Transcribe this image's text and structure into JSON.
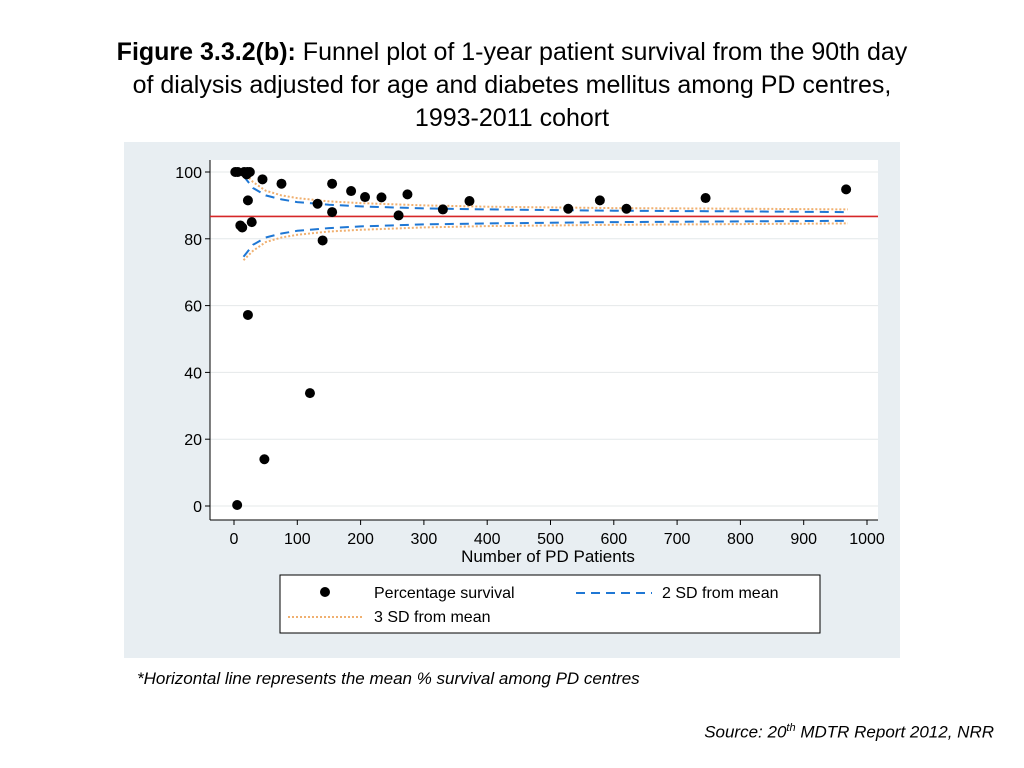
{
  "figure": {
    "label": "Figure 3.3.2(b):",
    "title_l1": " Funnel plot of 1-year patient survival from the 90th day",
    "title_l2": "of dialysis adjusted for age and diabetes mellitus among PD centres,",
    "title_l3": "1993-2011 cohort"
  },
  "footnote": "*Horizontal line represents the mean % survival among PD centres",
  "source": {
    "prefix": "Source: 20",
    "sup": "th",
    "suffix": " MDTR Report 2012, NRR"
  },
  "colors": {
    "panel_bg": "#e8eef2",
    "plot_bg": "#ffffff",
    "points": "#000000",
    "mean_line": "#d62728",
    "sd2": "#1f77d4",
    "sd3": "#f0b070"
  },
  "chart_data": {
    "type": "scatter",
    "xlabel": "Number of PD Patients",
    "ylabel": "",
    "xlim": [
      0,
      1000
    ],
    "ylim": [
      0,
      100
    ],
    "xticks": [
      0,
      100,
      200,
      300,
      400,
      500,
      600,
      700,
      800,
      900,
      1000
    ],
    "yticks": [
      0,
      20,
      40,
      60,
      80,
      100
    ],
    "grid": true,
    "mean": 86.7,
    "points": [
      [
        2,
        100
      ],
      [
        6,
        100
      ],
      [
        16,
        100
      ],
      [
        21,
        100
      ],
      [
        25,
        100
      ],
      [
        20,
        99.3
      ],
      [
        10,
        84
      ],
      [
        13,
        83.4
      ],
      [
        22,
        91.5
      ],
      [
        28,
        85
      ],
      [
        22,
        57.2
      ],
      [
        5,
        0.3
      ],
      [
        45,
        97.8
      ],
      [
        48,
        14
      ],
      [
        75,
        96.5
      ],
      [
        120,
        33.8
      ],
      [
        132,
        90.5
      ],
      [
        140,
        79.5
      ],
      [
        155,
        88
      ],
      [
        155,
        96.5
      ],
      [
        185,
        94.3
      ],
      [
        207,
        92.5
      ],
      [
        233,
        92.4
      ],
      [
        260,
        87
      ],
      [
        274,
        93.3
      ],
      [
        330,
        88.8
      ],
      [
        372,
        91.3
      ],
      [
        528,
        89
      ],
      [
        578,
        91.5
      ],
      [
        620,
        89
      ],
      [
        745,
        92.2
      ],
      [
        967,
        94.8
      ]
    ],
    "series": [
      {
        "name": "Percentage survival"
      },
      {
        "name": "2 SD from mean",
        "sd": 2
      },
      {
        "name": "3 SD from mean",
        "sd": 3
      }
    ],
    "limits": {
      "x_start": 15,
      "x_end": 970,
      "sd2": {
        "upper": [
          [
            15,
            98.8
          ],
          [
            30,
            95.2
          ],
          [
            50,
            93.0
          ],
          [
            75,
            91.8
          ],
          [
            100,
            91.0
          ],
          [
            150,
            90.2
          ],
          [
            200,
            89.7
          ],
          [
            300,
            89.1
          ],
          [
            400,
            88.8
          ],
          [
            600,
            88.4
          ],
          [
            800,
            88.2
          ],
          [
            970,
            88.0
          ]
        ],
        "lower": [
          [
            15,
            74.6
          ],
          [
            30,
            78.2
          ],
          [
            50,
            80.4
          ],
          [
            75,
            81.6
          ],
          [
            100,
            82.4
          ],
          [
            150,
            83.2
          ],
          [
            200,
            83.7
          ],
          [
            300,
            84.3
          ],
          [
            400,
            84.6
          ],
          [
            600,
            85.0
          ],
          [
            800,
            85.2
          ],
          [
            970,
            85.4
          ]
        ]
      },
      "sd3": {
        "upper": [
          [
            15,
            100
          ],
          [
            30,
            97.0
          ],
          [
            50,
            94.4
          ],
          [
            75,
            93.0
          ],
          [
            100,
            92.2
          ],
          [
            150,
            91.2
          ],
          [
            200,
            90.7
          ],
          [
            300,
            90.0
          ],
          [
            400,
            89.6
          ],
          [
            600,
            89.2
          ],
          [
            800,
            89.0
          ],
          [
            970,
            88.8
          ]
        ],
        "lower": [
          [
            15,
            73.6
          ],
          [
            30,
            76.4
          ],
          [
            50,
            79.0
          ],
          [
            75,
            80.4
          ],
          [
            100,
            81.2
          ],
          [
            150,
            82.2
          ],
          [
            200,
            82.7
          ],
          [
            300,
            83.4
          ],
          [
            400,
            83.8
          ],
          [
            600,
            84.2
          ],
          [
            800,
            84.4
          ],
          [
            970,
            84.6
          ]
        ]
      }
    },
    "legend": {
      "placement": "bottom",
      "items": [
        "Percentage survival",
        "2 SD from mean",
        "3 SD from mean"
      ]
    }
  }
}
